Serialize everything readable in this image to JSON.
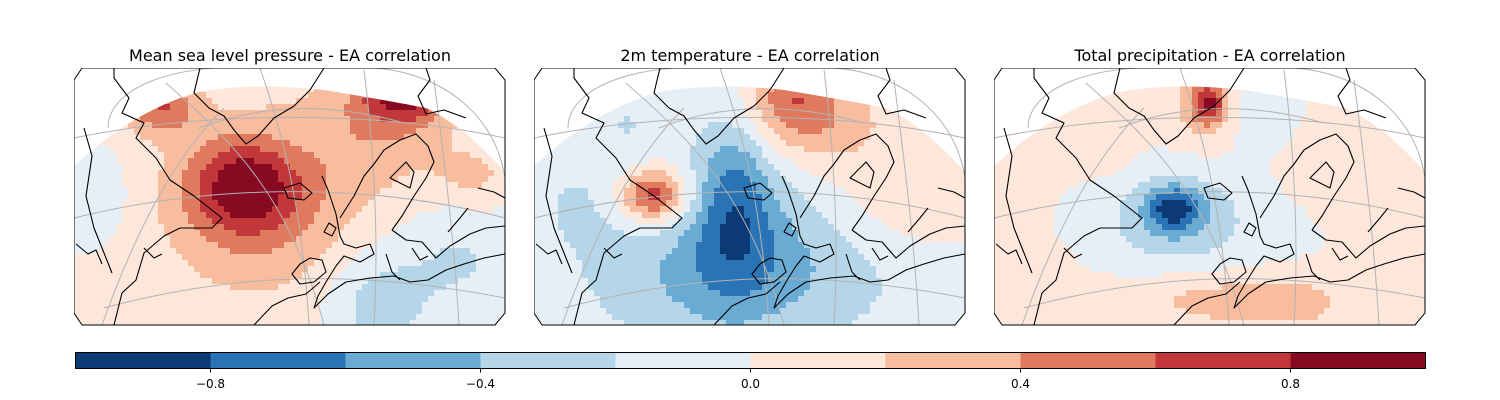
{
  "panels": [
    {
      "title": "Mean sea level pressure - EA correlation",
      "variable": "msl"
    },
    {
      "title": "2m temperature - EA correlation",
      "variable": "t2m"
    },
    {
      "title": "Total precipitation - EA correlation",
      "variable": "tp"
    }
  ],
  "colorbar": {
    "colormap": "RdBu_r",
    "range": [
      -1.0,
      1.0
    ],
    "boundaries": [
      -1.0,
      -0.8,
      -0.6,
      -0.4,
      -0.2,
      0.0,
      0.2,
      0.4,
      0.6,
      0.8,
      1.0
    ],
    "colors": [
      "#0b3a75",
      "#2a73b4",
      "#6aabd3",
      "#b4d6e8",
      "#e6eff6",
      "#fde6da",
      "#f8bc9f",
      "#e07a5f",
      "#c2383a",
      "#870a22"
    ],
    "ticks": [
      {
        "value": -0.8,
        "label": "−0.8"
      },
      {
        "value": -0.4,
        "label": "−0.4"
      },
      {
        "value": 0.0,
        "label": "0.0"
      },
      {
        "value": 0.4,
        "label": "0.4"
      },
      {
        "value": 0.8,
        "label": "0.8"
      }
    ]
  }
}
